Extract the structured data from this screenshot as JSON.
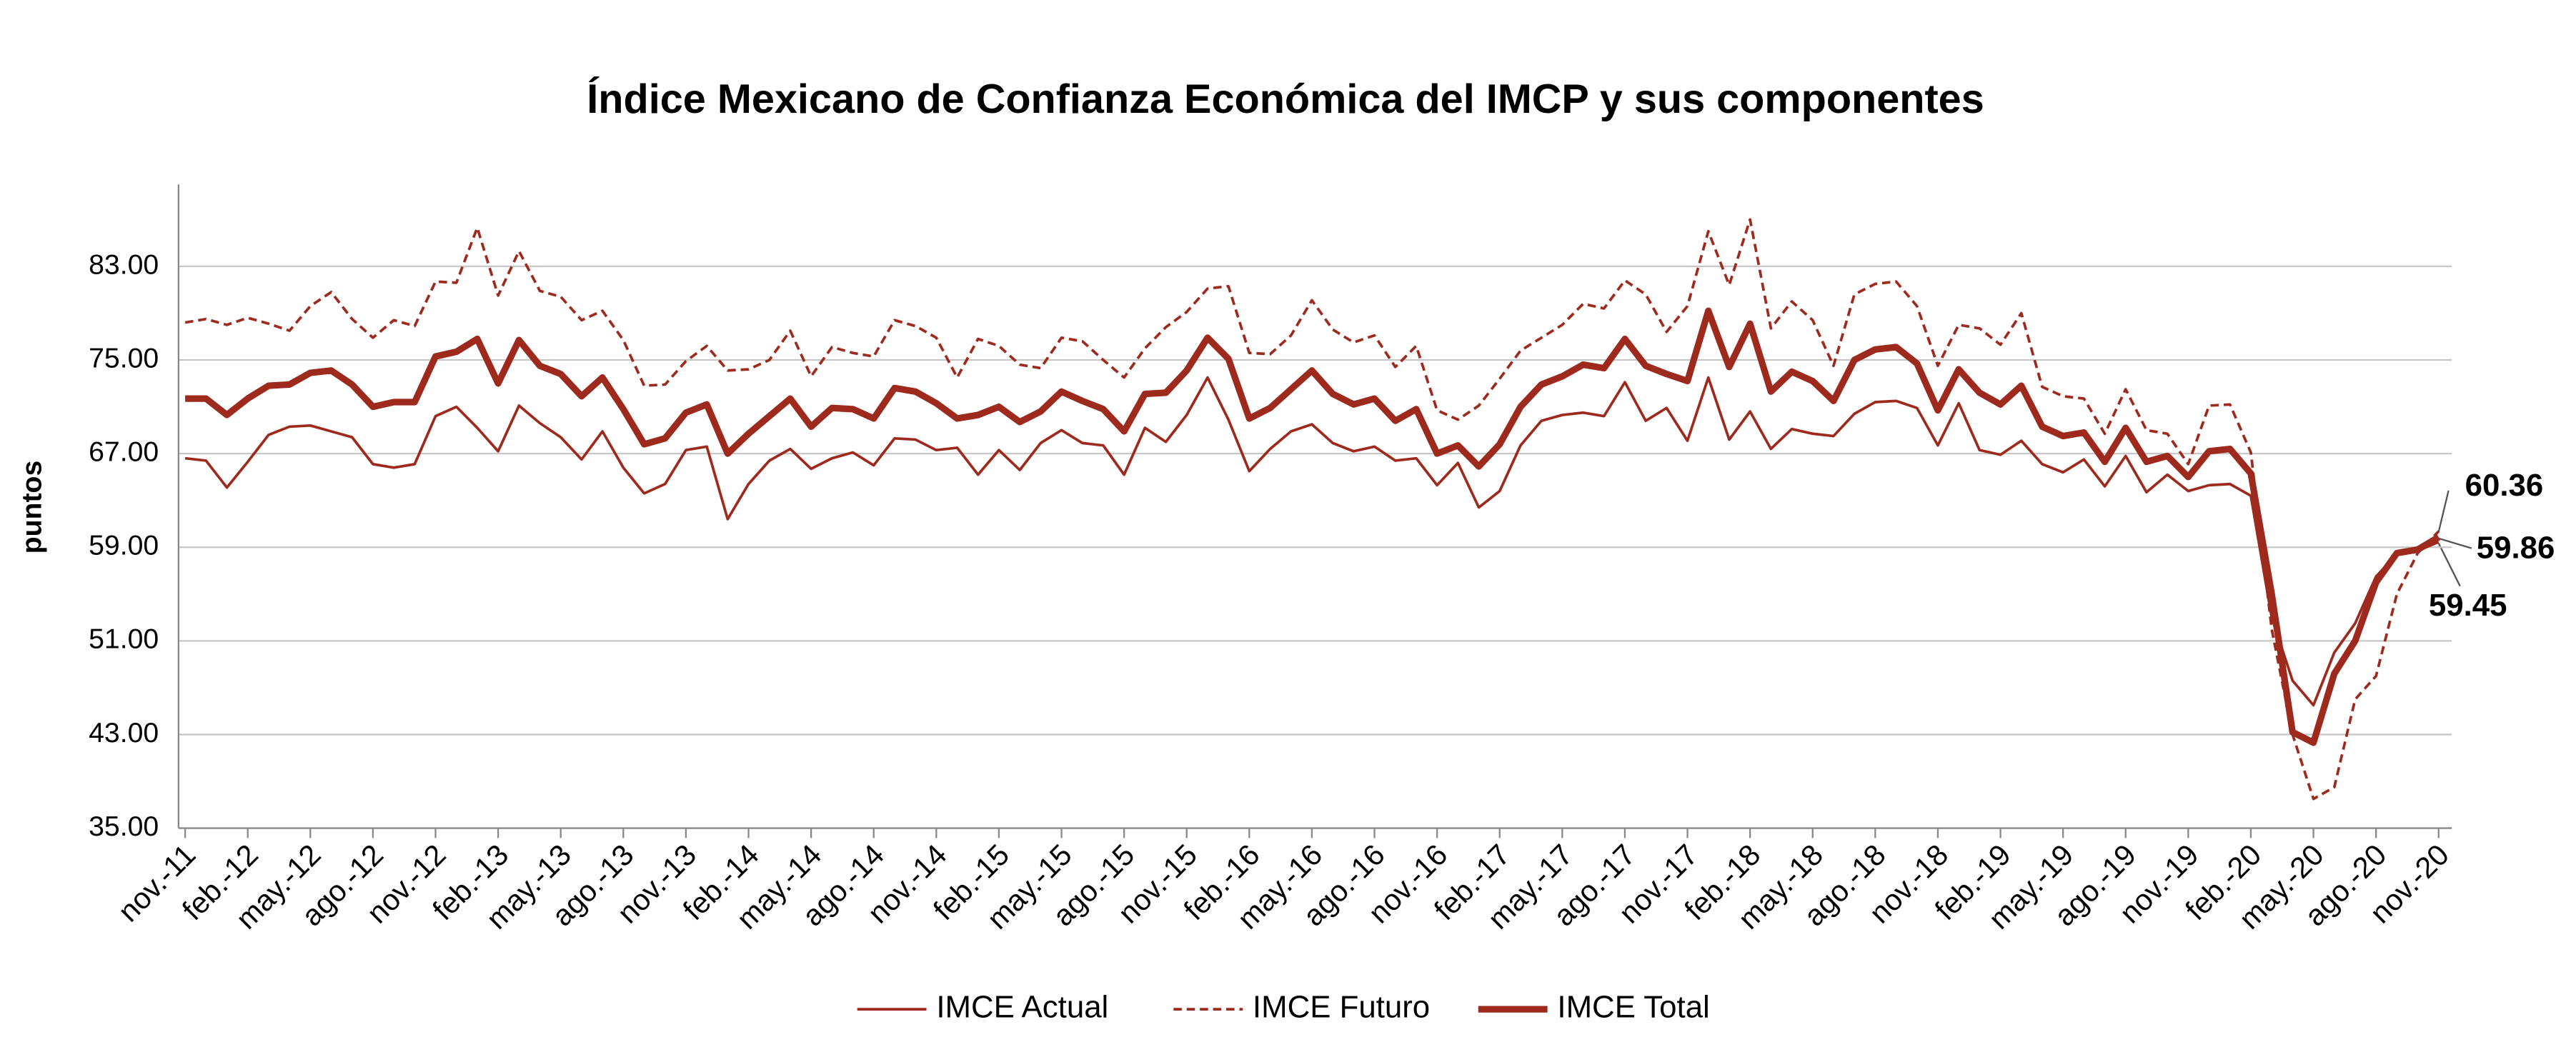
{
  "chart_data": {
    "type": "line",
    "title": "Índice Mexicano de Confianza Económica del IMCP y sus componentes",
    "y_label": "puntos",
    "categories": [
      "nov.-11",
      null,
      null,
      "feb.-12",
      null,
      null,
      "may.-12",
      null,
      null,
      "ago.-12",
      null,
      null,
      "nov.-12",
      null,
      null,
      "feb.-13",
      null,
      null,
      "may.-13",
      null,
      null,
      "ago.-13",
      null,
      null,
      "nov.-13",
      null,
      null,
      "feb.-14",
      null,
      null,
      "may.-14",
      null,
      null,
      "ago.-14",
      null,
      null,
      "nov.-14",
      null,
      null,
      "feb.-15",
      null,
      null,
      "may.-15",
      null,
      null,
      "ago.-15",
      null,
      null,
      "nov.-15",
      null,
      null,
      "feb.-16",
      null,
      null,
      "may.-16",
      null,
      null,
      "ago.-16",
      null,
      null,
      "nov.-16",
      null,
      null,
      "feb.-17",
      null,
      null,
      "may.-17",
      null,
      null,
      "ago.-17",
      null,
      null,
      "nov.-17",
      null,
      null,
      "feb.-18",
      null,
      null,
      "may.-18",
      null,
      null,
      "ago.-18",
      null,
      null,
      "nov.-18",
      null,
      null,
      "feb.-19",
      null,
      null,
      "may.-19",
      null,
      null,
      "ago.-19",
      null,
      null,
      "nov.-19",
      null,
      null,
      "feb.-20",
      null,
      null,
      "may.-20",
      null,
      null,
      "ago.-20",
      null,
      null,
      "nov.-20"
    ],
    "series": [
      {
        "name": "IMCE Actual",
        "color": "#9e2a1d",
        "line_style": "solid",
        "values": [
          66.6,
          66.4,
          64.1,
          66.3,
          68.6,
          69.3,
          69.4,
          68.9,
          68.4,
          66.1,
          65.8,
          66.1,
          70.2,
          71.0,
          69.2,
          67.2,
          71.1,
          69.6,
          68.4,
          66.5,
          68.9,
          65.8,
          63.6,
          64.4,
          67.3,
          67.6,
          61.4,
          64.4,
          66.4,
          67.4,
          65.7,
          66.6,
          67.1,
          66.0,
          68.3,
          68.2,
          67.3,
          67.5,
          65.2,
          67.3,
          65.6,
          67.9,
          69.0,
          67.9,
          67.7,
          65.2,
          69.2,
          68.0,
          70.3,
          73.5,
          69.9,
          65.5,
          67.4,
          68.9,
          69.5,
          67.9,
          67.2,
          67.6,
          66.4,
          66.6,
          64.3,
          66.2,
          62.4,
          63.8,
          67.7,
          69.8,
          70.3,
          70.5,
          70.2,
          73.1,
          69.8,
          70.9,
          68.1,
          73.5,
          68.2,
          70.6,
          67.4,
          69.1,
          68.7,
          68.5,
          70.4,
          71.4,
          71.5,
          70.9,
          67.7,
          71.3,
          67.3,
          66.9,
          68.1,
          66.1,
          65.4,
          66.5,
          64.2,
          66.8,
          63.7,
          65.2,
          63.8,
          64.3,
          64.4,
          63.4,
          53.0,
          47.6,
          45.5,
          50.0,
          52.5,
          56.5,
          58.4,
          58.7,
          59.45
        ]
      },
      {
        "name": "IMCE Futuro",
        "color": "#9e2a1d",
        "line_style": "dashed",
        "values": [
          78.2,
          78.5,
          78.0,
          78.6,
          78.1,
          77.5,
          79.6,
          80.8,
          78.5,
          76.9,
          78.4,
          77.9,
          81.7,
          81.6,
          86.3,
          80.5,
          84.3,
          80.9,
          80.4,
          78.4,
          79.2,
          76.7,
          72.8,
          72.9,
          74.9,
          76.2,
          74.1,
          74.2,
          75.0,
          77.5,
          73.6,
          76.1,
          75.6,
          75.3,
          78.4,
          77.9,
          76.9,
          73.5,
          76.8,
          76.2,
          74.6,
          74.3,
          76.9,
          76.6,
          75.0,
          73.5,
          76.0,
          77.8,
          79.1,
          81.1,
          81.3,
          75.6,
          75.5,
          77.1,
          80.1,
          77.6,
          76.5,
          77.1,
          74.4,
          76.2,
          70.7,
          69.9,
          71.1,
          73.4,
          75.8,
          76.9,
          78.0,
          79.8,
          79.4,
          81.8,
          80.6,
          77.4,
          79.6,
          86.0,
          81.4,
          87.0,
          77.7,
          80.0,
          78.4,
          74.5,
          80.6,
          81.5,
          81.7,
          79.6,
          74.5,
          78.0,
          77.7,
          76.3,
          79.0,
          72.7,
          71.9,
          71.7,
          68.7,
          72.5,
          69.0,
          68.7,
          66.1,
          71.1,
          71.2,
          67.1,
          52.0,
          43.0,
          37.5,
          38.5,
          46.0,
          48.0,
          55.0,
          58.5,
          60.36
        ]
      },
      {
        "name": "IMCE Total",
        "color": "#9e2a1d",
        "line_style": "thick",
        "values": [
          71.7,
          71.7,
          70.3,
          71.7,
          72.8,
          72.9,
          73.9,
          74.1,
          72.9,
          71.0,
          71.4,
          71.4,
          75.3,
          75.7,
          76.8,
          73.0,
          76.7,
          74.5,
          73.8,
          71.9,
          73.5,
          70.8,
          67.8,
          68.3,
          70.5,
          71.2,
          67.0,
          68.7,
          70.2,
          71.7,
          69.3,
          70.9,
          70.8,
          70.0,
          72.6,
          72.3,
          71.3,
          70.0,
          70.3,
          71.0,
          69.7,
          70.6,
          72.3,
          71.5,
          70.8,
          68.9,
          72.1,
          72.2,
          74.1,
          76.9,
          75.1,
          70.0,
          70.9,
          72.5,
          74.1,
          72.1,
          71.2,
          71.7,
          69.8,
          70.8,
          67.0,
          67.7,
          65.9,
          67.8,
          71.0,
          72.9,
          73.6,
          74.6,
          74.3,
          76.8,
          74.5,
          73.8,
          73.2,
          79.2,
          74.4,
          78.1,
          72.3,
          74.0,
          73.2,
          71.5,
          75.0,
          75.9,
          76.1,
          74.7,
          70.7,
          74.2,
          72.2,
          71.2,
          72.8,
          69.3,
          68.5,
          68.8,
          66.3,
          69.2,
          66.3,
          66.8,
          65.0,
          67.2,
          67.4,
          65.3,
          55.0,
          43.2,
          42.3,
          48.2,
          51.0,
          56.0,
          58.5,
          58.8,
          59.86
        ]
      }
    ],
    "ylim": [
      35,
      90
    ],
    "yticks": [
      {
        "value": 35,
        "label": "35.00"
      },
      {
        "value": 43,
        "label": "43.00"
      },
      {
        "value": 51,
        "label": "51.00"
      },
      {
        "value": 59,
        "label": "59.00"
      },
      {
        "value": 67,
        "label": "67.00"
      },
      {
        "value": 75,
        "label": "75.00"
      },
      {
        "value": 83,
        "label": "83.00"
      }
    ],
    "grid": true,
    "legend": "bottom"
  }
}
